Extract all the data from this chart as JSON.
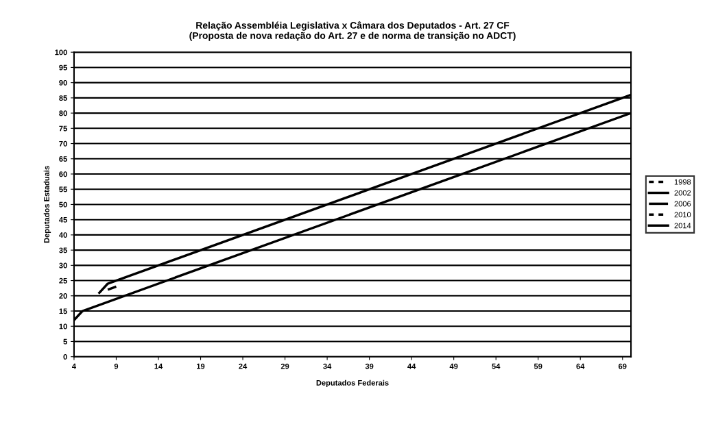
{
  "chart_data": {
    "type": "line",
    "title": "Relação Assembléia Legislativa x Câmara dos Deputados - Art. 27 CF\n(Proposta de nova redação do Art. 27 e de norma de transição no ADCT)",
    "xlabel": "Deputados Federais",
    "ylabel": "Deputados Estaduais",
    "xlim": [
      4,
      70
    ],
    "xticks": [
      4,
      9,
      14,
      19,
      24,
      29,
      34,
      39,
      44,
      49,
      54,
      59,
      64,
      69
    ],
    "ylim": [
      0,
      100
    ],
    "yticks": [
      0,
      5,
      10,
      15,
      20,
      25,
      30,
      35,
      40,
      45,
      50,
      55,
      60,
      65,
      70,
      75,
      80,
      85,
      90,
      95,
      100
    ],
    "grid": "y",
    "legend": "right",
    "marker": "none",
    "series": [
      {
        "name": "1998",
        "color": "#000000",
        "line_style": "dotted"
      },
      {
        "name": "2002",
        "color": "#000000",
        "line_style": "solid",
        "x": [
          7,
          8,
          9,
          70
        ],
        "values": [
          21,
          24,
          25,
          86
        ]
      },
      {
        "name": "2006",
        "color": "#000000",
        "line_style": "dashed",
        "x": [
          8,
          9
        ],
        "values": [
          22,
          23
        ]
      },
      {
        "name": "2010",
        "color": "#000000",
        "line_style": "dotted"
      },
      {
        "name": "2014",
        "color": "#000000",
        "line_style": "solid",
        "x": [
          4,
          5,
          70
        ],
        "values": [
          12,
          15,
          80
        ]
      }
    ]
  }
}
